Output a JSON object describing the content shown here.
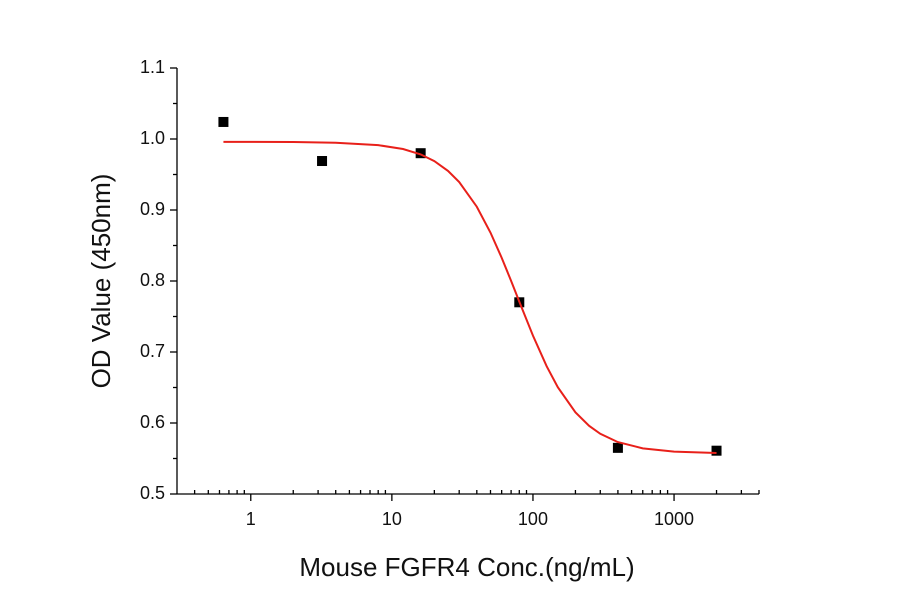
{
  "chart_data": {
    "type": "scatter",
    "x_label": "Mouse FGFR4 Conc.(ng/mL)",
    "y_label": "OD Value (450nm)",
    "x_log": true,
    "xlim": [
      0.3,
      4000
    ],
    "xticks": [
      1,
      10,
      100,
      1000
    ],
    "xminorticks": [
      0.4,
      0.5,
      0.6,
      0.7,
      0.8,
      0.9,
      2,
      3,
      4,
      5,
      6,
      7,
      8,
      9,
      20,
      30,
      40,
      50,
      60,
      70,
      80,
      90,
      200,
      300,
      400,
      500,
      600,
      700,
      800,
      900,
      2000,
      3000,
      4000
    ],
    "ylim": [
      0.5,
      1.1
    ],
    "yticks": [
      0.5,
      0.6,
      0.7,
      0.8,
      0.9,
      {
        "value": 1,
        "label": "1.0"
      },
      1.1
    ],
    "yminorticks": [
      0.55,
      0.65,
      0.75,
      0.85,
      0.95,
      1.05
    ],
    "series": [
      {
        "color": "#000000",
        "marker": "square",
        "x": [
          0.64,
          3.2,
          16,
          80,
          400,
          2000
        ],
        "values": [
          1.024,
          0.969,
          0.98,
          0.77,
          0.565,
          0.561
        ]
      },
      {
        "color": "#e8201a",
        "marker": "line",
        "x": [
          0.64,
          1,
          2,
          4,
          8,
          12,
          16,
          20,
          25,
          30,
          40,
          50,
          60,
          70,
          80,
          100,
          125,
          150,
          200,
          250,
          300,
          400,
          600,
          1000,
          2000
        ],
        "values": [
          0.996,
          0.9959,
          0.9957,
          0.9948,
          0.9914,
          0.9859,
          0.9783,
          0.9689,
          0.9551,
          0.9394,
          0.9046,
          0.8681,
          0.8328,
          0.8002,
          0.7709,
          0.7231,
          0.68,
          0.6504,
          0.615,
          0.596,
          0.5848,
          0.5731,
          0.5643,
          0.5597,
          0.5577
        ]
      }
    ]
  }
}
